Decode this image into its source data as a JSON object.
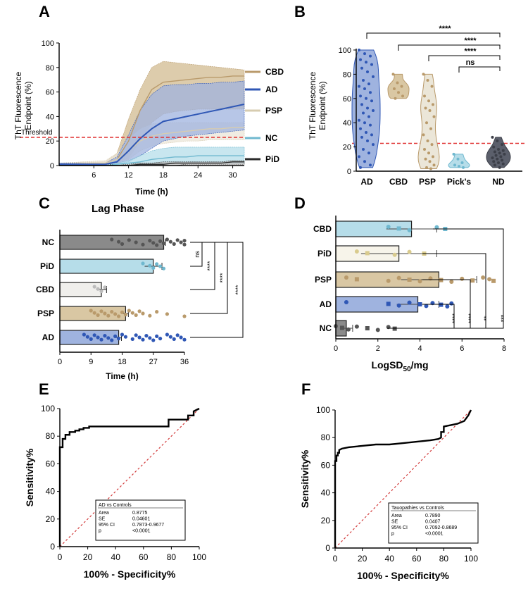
{
  "colors": {
    "AD": "#2f57b5",
    "AD_fill": "#9fb3df",
    "CBD": "#b99a6b",
    "CBD_fill": "#d9c7a3",
    "PSP": "#d7ccb0",
    "PSP_fill": "#ebe6d8",
    "NC": "#6fb8cf",
    "NC_fill": "#b6dde9",
    "PiD": "#2b2b2b",
    "ND": "#3c3f48",
    "ND_fill": "#5b5f6b",
    "threshold": "#e03131",
    "roc": "#000000",
    "diag": "#d23a3a"
  },
  "chart_data": [
    {
      "panel": "A",
      "type": "area",
      "ylabel": "ThT Fluorescence Endpoint (%)",
      "ylabel_lines": [
        "ThT Fluorescence",
        "Endpoint (%)"
      ],
      "xlabel": "Time (h)",
      "xlim": [
        0,
        32
      ],
      "ylim": [
        0,
        100
      ],
      "xticks": [
        6,
        12,
        18,
        24,
        30
      ],
      "yticks": [
        0,
        20,
        40,
        60,
        80,
        100
      ],
      "threshold": 23,
      "threshold_label": "Threshold",
      "series": [
        {
          "name": "CBD",
          "x": [
            0,
            8,
            10,
            12,
            14,
            16,
            18,
            20,
            22,
            24,
            26,
            28,
            30,
            32
          ],
          "mean": [
            1,
            2,
            5,
            20,
            45,
            62,
            68,
            69,
            70,
            71,
            72,
            72,
            73,
            73
          ],
          "upper": [
            2,
            3,
            10,
            38,
            62,
            80,
            85,
            84,
            83,
            82,
            81,
            80,
            79,
            78
          ],
          "lower": [
            0,
            1,
            2,
            6,
            20,
            35,
            42,
            44,
            45,
            46,
            46,
            46,
            46,
            46
          ]
        },
        {
          "name": "AD",
          "x": [
            0,
            8,
            10,
            12,
            14,
            16,
            18,
            20,
            22,
            24,
            26,
            28,
            30,
            32
          ],
          "mean": [
            1,
            1,
            3,
            12,
            22,
            30,
            36,
            38,
            40,
            42,
            44,
            46,
            48,
            50
          ],
          "upper": [
            2,
            2,
            7,
            25,
            45,
            58,
            65,
            66,
            66,
            67,
            67,
            68,
            68,
            69
          ],
          "lower": [
            0,
            0,
            1,
            3,
            8,
            14,
            20,
            22,
            24,
            25,
            26,
            27,
            28,
            29
          ]
        },
        {
          "name": "PSP",
          "x": [
            0,
            8,
            10,
            12,
            14,
            16,
            18,
            20,
            22,
            24,
            26,
            28,
            30,
            32
          ],
          "mean": [
            1,
            2,
            5,
            12,
            20,
            24,
            26,
            27,
            28,
            29,
            30,
            30,
            31,
            31
          ],
          "upper": [
            2,
            4,
            10,
            22,
            30,
            34,
            35,
            35,
            35,
            35,
            35,
            35,
            35,
            35
          ],
          "lower": [
            0,
            1,
            2,
            5,
            12,
            16,
            18,
            19,
            20,
            20,
            21,
            21,
            21,
            21
          ]
        },
        {
          "name": "NC",
          "x": [
            0,
            8,
            10,
            12,
            14,
            16,
            18,
            20,
            22,
            24,
            26,
            28,
            30,
            32
          ],
          "mean": [
            0,
            0,
            1,
            2,
            3,
            5,
            6,
            7,
            7,
            8,
            8,
            8,
            8,
            8
          ],
          "upper": [
            1,
            1,
            2,
            4,
            8,
            12,
            14,
            15,
            15,
            15,
            15,
            15,
            15,
            15
          ],
          "lower": [
            0,
            0,
            0,
            0,
            1,
            1,
            2,
            2,
            2,
            2,
            2,
            2,
            2,
            2
          ]
        },
        {
          "name": "PiD",
          "x": [
            0,
            8,
            10,
            12,
            14,
            16,
            18,
            20,
            22,
            24,
            26,
            28,
            30,
            32
          ],
          "mean": [
            0,
            0,
            0,
            0,
            1,
            1,
            1,
            2,
            2,
            2,
            2,
            2,
            3,
            3
          ],
          "upper": [
            1,
            1,
            1,
            1,
            2,
            2,
            3,
            3,
            3,
            3,
            3,
            3,
            4,
            4
          ],
          "lower": [
            0,
            0,
            0,
            0,
            0,
            0,
            0,
            0,
            1,
            1,
            1,
            1,
            1,
            1
          ]
        }
      ],
      "legend": [
        "CBD",
        "AD",
        "PSP",
        "NC",
        "PiD"
      ]
    },
    {
      "panel": "B",
      "type": "violin",
      "ylabel": "ThT Fluorescence Endpoint (%)",
      "ylabel_lines": [
        "ThT Fluorescence",
        "Endpoint (%)"
      ],
      "categories": [
        "AD",
        "CBD",
        "PSP",
        "Pick's",
        "ND"
      ],
      "ylim": [
        0,
        100
      ],
      "yticks": [
        0,
        20,
        40,
        60,
        80,
        100
      ],
      "threshold": 23,
      "points": {
        "AD": [
          100,
          97,
          95,
          92,
          90,
          88,
          85,
          82,
          78,
          75,
          72,
          70,
          68,
          65,
          62,
          60,
          58,
          55,
          52,
          50,
          48,
          45,
          42,
          40,
          38,
          35,
          32,
          30,
          28,
          25,
          22,
          18,
          15,
          12,
          8,
          5,
          3
        ],
        "CBD": [
          80,
          73,
          70,
          68,
          65,
          62,
          60
        ],
        "PSP": [
          80,
          75,
          70,
          62,
          58,
          55,
          52,
          50,
          45,
          40,
          35,
          30,
          25,
          22,
          18,
          15,
          12,
          10,
          8,
          5,
          3,
          2
        ],
        "Pick's": [
          14,
          10,
          7,
          5,
          4,
          3
        ],
        "ND": [
          28,
          25,
          22,
          20,
          18,
          17,
          16,
          15,
          14,
          13,
          12,
          11,
          10,
          9,
          8,
          7,
          6,
          5,
          3
        ]
      },
      "comparisons": [
        {
          "from": "AD",
          "to": "ND",
          "label": "****"
        },
        {
          "from": "CBD",
          "to": "ND",
          "label": "****"
        },
        {
          "from": "PSP",
          "to": "ND",
          "label": "****"
        },
        {
          "from": "Pick's",
          "to": "ND",
          "label": "ns"
        }
      ]
    },
    {
      "panel": "C",
      "type": "bar",
      "orientation": "horizontal",
      "title": "Lag Phase",
      "xlabel": "Time (h)",
      "categories": [
        "NC",
        "PiD",
        "CBD",
        "PSP",
        "AD"
      ],
      "values": [
        30,
        27,
        12,
        19,
        17
      ],
      "errors": [
        0.5,
        2.5,
        1.5,
        0.8,
        0.8
      ],
      "xlim": [
        0,
        36
      ],
      "xticks": [
        0,
        9,
        18,
        27,
        36
      ],
      "points": {
        "NC": [
          15,
          17,
          18,
          20,
          22,
          24,
          26,
          27,
          28,
          29,
          30,
          31,
          32,
          33,
          34,
          35,
          36,
          36
        ],
        "PiD": [
          24,
          26,
          27,
          28,
          29,
          30
        ],
        "CBD": [
          10,
          11,
          12,
          13
        ],
        "PSP": [
          9,
          10,
          11,
          12,
          13,
          14,
          15,
          16,
          17,
          18,
          19,
          20,
          21,
          22,
          23,
          24,
          26,
          28,
          31,
          36
        ],
        "AD": [
          7,
          8,
          9,
          10,
          11,
          12,
          13,
          14,
          15,
          16,
          17,
          18,
          19,
          21,
          22,
          23,
          24,
          25,
          26,
          27,
          28,
          29,
          31,
          32,
          33,
          34,
          35,
          36
        ]
      },
      "comparisons": [
        {
          "label": "ns"
        },
        {
          "label": "****"
        },
        {
          "label": "****"
        },
        {
          "label": "****"
        }
      ]
    },
    {
      "panel": "D",
      "type": "bar",
      "orientation": "horizontal",
      "xlabel": "LogSD50/mg",
      "xlabel_main": "LogSD",
      "xlabel_sub": "50",
      "xlabel_tail": "/mg",
      "categories": [
        "CBD",
        "PiD",
        "PSP",
        "AD",
        "NC"
      ],
      "values": [
        3.6,
        3.0,
        4.9,
        3.9,
        0.5
      ],
      "errors": [
        1.2,
        1.8,
        1.8,
        1.0,
        0.3
      ],
      "xlim": [
        0,
        8
      ],
      "xticks": [
        0,
        2,
        4,
        6,
        8
      ],
      "points": {
        "CBD": [
          2.5,
          3.0,
          3.5,
          4.8,
          5.2
        ],
        "PiD": [
          1.0,
          1.5,
          2.8,
          3.5,
          4.2
        ],
        "PSP": [
          0.5,
          1.0,
          2.5,
          3.0,
          3.5,
          4.0,
          4.5,
          5.0,
          5.5,
          6.0,
          6.5,
          7.0,
          7.3,
          7.5
        ],
        "AD": [
          0.5,
          2.5,
          3.0,
          3.5,
          4.0,
          4.3,
          4.6,
          5.0,
          5.3,
          5.5
        ],
        "NC": [
          0.0,
          0.3,
          0.6,
          1.0,
          1.5,
          2.0,
          2.5,
          2.8
        ]
      },
      "comparisons": [
        {
          "label": "****"
        },
        {
          "label": "****"
        },
        {
          "label": "**"
        },
        {
          "label": "***"
        }
      ]
    },
    {
      "panel": "E",
      "type": "line",
      "ylabel": "Sensitivity%",
      "xlabel": "100% - Specificity%",
      "xlim": [
        0,
        100
      ],
      "ylim": [
        0,
        100
      ],
      "xticks": [
        0,
        20,
        40,
        60,
        80,
        100
      ],
      "yticks": [
        0,
        20,
        40,
        60,
        80,
        100
      ],
      "x": [
        0,
        0,
        2,
        2,
        4,
        4,
        7,
        7,
        11,
        11,
        14,
        14,
        17,
        17,
        21,
        21,
        78,
        78,
        92,
        92,
        96,
        96,
        100
      ],
      "y": [
        0,
        72,
        72,
        78,
        78,
        81,
        81,
        83,
        83,
        84,
        84,
        85,
        85,
        86,
        86,
        87,
        87,
        92,
        92,
        95,
        95,
        98,
        100
      ],
      "stats": {
        "title": "AD vs Controls",
        "rows": [
          [
            "Area",
            "0.8775"
          ],
          [
            "SE",
            "0.04601"
          ],
          [
            "95% CI",
            "0.7873-0.9677"
          ],
          [
            "p",
            "<0.0001"
          ]
        ]
      }
    },
    {
      "panel": "F",
      "type": "line",
      "ylabel": "Sensitivity%",
      "xlabel": "100% - Specificity%",
      "xlim": [
        0,
        100
      ],
      "ylim": [
        0,
        100
      ],
      "xticks": [
        0,
        20,
        40,
        60,
        80,
        100
      ],
      "yticks": [
        0,
        20,
        40,
        60,
        80,
        100
      ],
      "x": [
        0,
        0,
        1,
        1,
        2,
        2,
        3,
        3,
        5,
        10,
        20,
        30,
        40,
        50,
        60,
        70,
        76,
        78,
        78,
        80,
        80,
        85,
        90,
        95,
        98,
        100
      ],
      "y": [
        0,
        63,
        63,
        67,
        67,
        69,
        69,
        71,
        72,
        73,
        74,
        75,
        75,
        76,
        77,
        78,
        79,
        80,
        84,
        84,
        88,
        89,
        90,
        92,
        96,
        100
      ],
      "stats": {
        "title": "Tauopathies vs Controls",
        "rows": [
          [
            "Area",
            "0.7890"
          ],
          [
            "SE",
            "0.0407"
          ],
          [
            "95% CI",
            "0.7092-0.8689"
          ],
          [
            "p",
            "<0.0001"
          ]
        ]
      }
    }
  ],
  "panels": {
    "A": "A",
    "B": "B",
    "C": "C",
    "D": "D",
    "E": "E",
    "F": "F"
  }
}
